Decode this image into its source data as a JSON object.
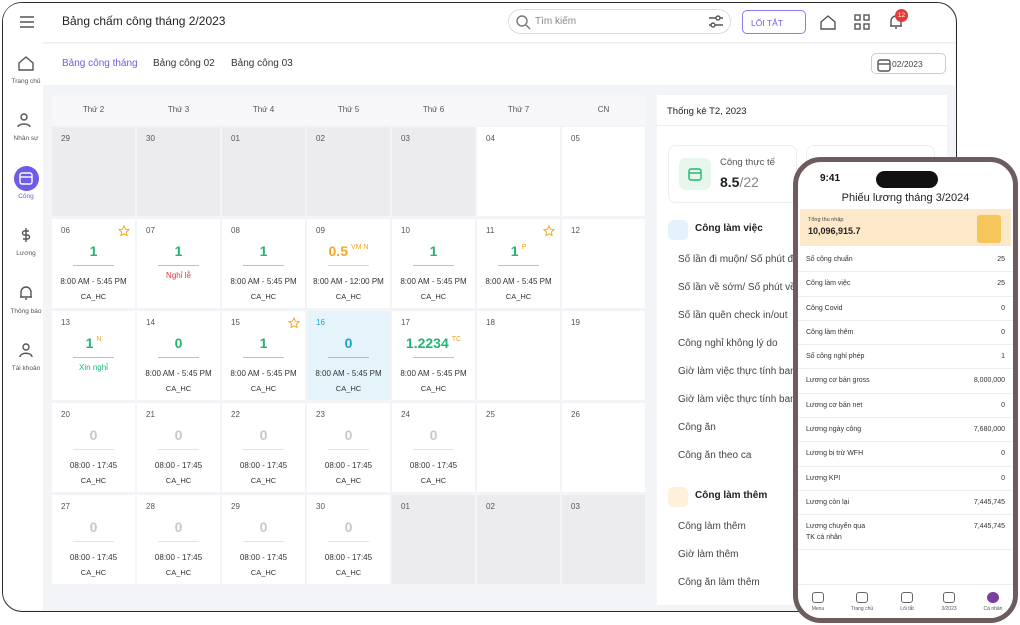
{
  "header": {
    "title": "Bảng chấm công tháng 2/2023",
    "search": "Tìm kiếm",
    "shortcut": "LỐI TẮT",
    "notifications": "12"
  },
  "sidebar": {
    "items": [
      "Trang chủ",
      "Nhân sự",
      "Công",
      "Lương",
      "Thông báo",
      "Tài khoản"
    ],
    "active": 2
  },
  "tabs": {
    "items": [
      "Bảng công tháng",
      "Bảng công 02",
      "Bảng công 03"
    ],
    "active": 0,
    "month": "02/2023"
  },
  "calendar": {
    "weekdays": [
      "Thứ 2",
      "Thứ 3",
      "Thứ 4",
      "Thứ 5",
      "Thứ 6",
      "Thứ 7",
      "CN"
    ],
    "weeks": [
      [
        {
          "day": "29",
          "background": "#ececee"
        },
        {
          "day": "30",
          "background": "#ececee"
        },
        {
          "day": "01",
          "background": "#ececee"
        },
        {
          "day": "02",
          "background": "#ececee"
        },
        {
          "day": "03",
          "background": "#ececee"
        },
        {
          "day": "04"
        },
        {
          "day": "05"
        }
      ],
      [
        {
          "day": "06",
          "value": "1",
          "color": "#22b573",
          "starred": true,
          "time": "8:00 AM - 5:45 PM",
          "shift": "CA_HC"
        },
        {
          "day": "07",
          "value": "1",
          "color": "#22b573",
          "note": "Nghỉ lễ",
          "note_color": "#e53935"
        },
        {
          "day": "08",
          "value": "1",
          "color": "#22b573",
          "time": "8:00 AM - 5:45 PM",
          "shift": "CA_HC"
        },
        {
          "day": "09",
          "value": "0.5",
          "tag": "VM N",
          "color": "#f5a623",
          "time": "8:00 AM - 12:00 PM",
          "shift": "CA_HC"
        },
        {
          "day": "10",
          "value": "1",
          "color": "#22b573",
          "time": "8:00 AM - 5:45 PM",
          "shift": "CA_HC"
        },
        {
          "day": "11",
          "value": "1",
          "tag": "P",
          "color": "#22b573",
          "starred": true,
          "time": "8:00 AM - 5:45 PM",
          "shift": "CA_HC"
        },
        {
          "day": "12"
        }
      ],
      [
        {
          "day": "13",
          "value": "1",
          "tag": "N",
          "color": "#22b573",
          "note": "Xin nghỉ",
          "note_color": "#22b573"
        },
        {
          "day": "14",
          "value": "0",
          "color": "#22b573",
          "time": "8:00 AM - 5:45 PM",
          "shift": "CA_HC"
        },
        {
          "day": "15",
          "value": "1",
          "color": "#22b573",
          "starred": true,
          "time": "8:00 AM - 5:45 PM",
          "shift": "CA_HC"
        },
        {
          "day": "16",
          "value": "0",
          "color": "#1ba3c6",
          "background": "#e5f3fb",
          "time": "8:00 AM - 5:45 PM",
          "shift": "CA_HC"
        },
        {
          "day": "17",
          "value": "1.2234",
          "tag": "TC",
          "color": "#22b573",
          "time": "8:00 AM - 5:45 PM",
          "shift": "CA_HC"
        },
        {
          "day": "18"
        },
        {
          "day": "19"
        }
      ],
      [
        {
          "day": "20",
          "value": "0",
          "color": "#c8c8cc",
          "time": "08:00 - 17:45",
          "shift": "CA_HC"
        },
        {
          "day": "21",
          "value": "0",
          "color": "#c8c8cc",
          "time": "08:00 - 17:45",
          "shift": "CA_HC"
        },
        {
          "day": "22",
          "value": "0",
          "color": "#c8c8cc",
          "time": "08:00 - 17:45",
          "shift": "CA_HC"
        },
        {
          "day": "23",
          "value": "0",
          "color": "#c8c8cc",
          "time": "08:00 - 17:45",
          "shift": "CA_HC"
        },
        {
          "day": "24",
          "value": "0",
          "color": "#c8c8cc",
          "time": "08:00 - 17:45",
          "shift": "CA_HC"
        },
        {
          "day": "25"
        },
        {
          "day": "26"
        }
      ],
      [
        {
          "day": "27",
          "value": "0",
          "color": "#c8c8cc",
          "time": "08:00 - 17:45",
          "shift": "CA_HC"
        },
        {
          "day": "28",
          "value": "0",
          "color": "#c8c8cc",
          "time": "08:00 - 17:45",
          "shift": "CA_HC"
        },
        {
          "day": "29",
          "value": "0",
          "color": "#c8c8cc",
          "time": "08:00 - 17:45",
          "shift": "CA_HC"
        },
        {
          "day": "30",
          "value": "0",
          "color": "#c8c8cc",
          "time": "08:00 - 17:45",
          "shift": "CA_HC"
        },
        {
          "day": "01",
          "background": "#ececee"
        },
        {
          "day": "02",
          "background": "#ececee"
        },
        {
          "day": "03",
          "background": "#ececee"
        }
      ]
    ]
  },
  "stats": {
    "title": "Thống kê T2, 2023",
    "card_label": "Công thực tế",
    "card_value": "8.5",
    "card_total": "/22",
    "sections": [
      {
        "title": "Công làm việc",
        "items": [
          "Số lần đi muộn/ Số phút đi",
          "Số lần về sớm/ Số phút về",
          "Số lần quên check in/out",
          "Công nghỉ không lý do",
          "Giờ làm việc thực tính ban",
          "Giờ làm việc thực tính ban",
          "Công ăn",
          "Công ăn theo ca"
        ]
      },
      {
        "title": "Công làm thêm",
        "items": [
          "Công làm thêm",
          "Giờ làm thêm",
          "Công ăn làm thêm"
        ]
      }
    ]
  },
  "phone": {
    "time": "9:41",
    "title": "Phiếu lương tháng 3/2024",
    "income_label": "Tổng thu nhập",
    "income": "10,096,915.7",
    "rows": [
      [
        "Số công chuẩn",
        "25"
      ],
      [
        "Công làm việc",
        "25"
      ],
      [
        "Công Covid",
        "0"
      ],
      [
        "Công làm thêm",
        "0"
      ],
      [
        "Số công nghỉ phép",
        "1"
      ],
      [
        "Lương cơ bản gross",
        "8,000,000"
      ],
      [
        "Lương cơ bản net",
        "0"
      ],
      [
        "Lương ngày công",
        "7,680,000"
      ],
      [
        "Lương bị trừ WFH",
        "0"
      ],
      [
        "Lương KPI",
        "0"
      ],
      [
        "Lương còn lại",
        "7,445,745"
      ],
      [
        "Lương chuyển qua TK cá nhân",
        "7,445,745"
      ]
    ],
    "nav": [
      "Menu",
      "Trang chủ",
      "Lối tắt",
      "3/2023",
      "Cá nhân"
    ]
  }
}
